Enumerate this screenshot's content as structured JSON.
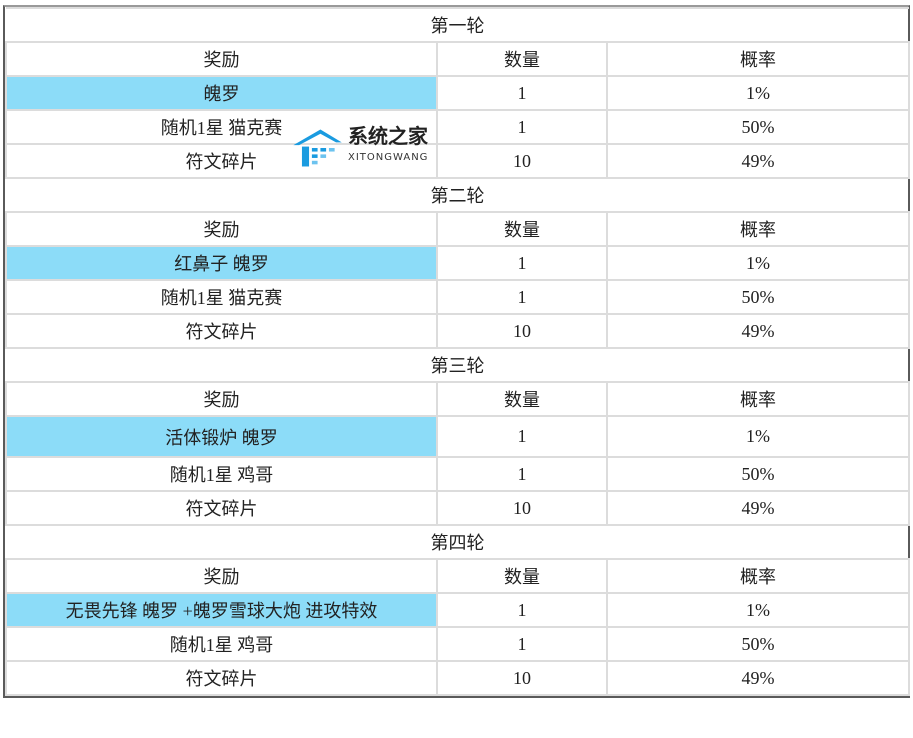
{
  "headers": {
    "reward": "奖励",
    "quantity": "数量",
    "probability": "概率"
  },
  "rounds": [
    {
      "title": "第一轮",
      "rows": [
        {
          "reward": "魄罗",
          "quantity": "1",
          "probability": "1%",
          "highlight": true
        },
        {
          "reward": "随机1星  猫克赛",
          "quantity": "1",
          "probability": "50%"
        },
        {
          "reward": "符文碎片",
          "quantity": "10",
          "probability": "49%"
        }
      ]
    },
    {
      "title": "第二轮",
      "rows": [
        {
          "reward": "红鼻子  魄罗",
          "quantity": "1",
          "probability": "1%",
          "highlight": true
        },
        {
          "reward": "随机1星  猫克赛",
          "quantity": "1",
          "probability": "50%"
        },
        {
          "reward": "符文碎片",
          "quantity": "10",
          "probability": "49%"
        }
      ]
    },
    {
      "title": "第三轮",
      "rows": [
        {
          "reward": "活体锻炉  魄罗",
          "quantity": "1",
          "probability": "1%",
          "highlight": true
        },
        {
          "reward": "随机1星  鸡哥",
          "quantity": "1",
          "probability": "50%"
        },
        {
          "reward": "符文碎片",
          "quantity": "10",
          "probability": "49%"
        }
      ]
    },
    {
      "title": "第四轮",
      "rows": [
        {
          "reward": "无畏先锋  魄罗  +魄罗雪球大炮  进攻特效",
          "quantity": "1",
          "probability": "1%",
          "highlight": true
        },
        {
          "reward": "随机1星  鸡哥",
          "quantity": "1",
          "probability": "50%"
        },
        {
          "reward": "符文碎片",
          "quantity": "10",
          "probability": "49%"
        }
      ]
    }
  ],
  "watermark": {
    "name": "系统之家",
    "sub": "XITONGWANG"
  },
  "colors": {
    "highlight": "#8cdcf8",
    "watermark": "#1a9be0"
  }
}
